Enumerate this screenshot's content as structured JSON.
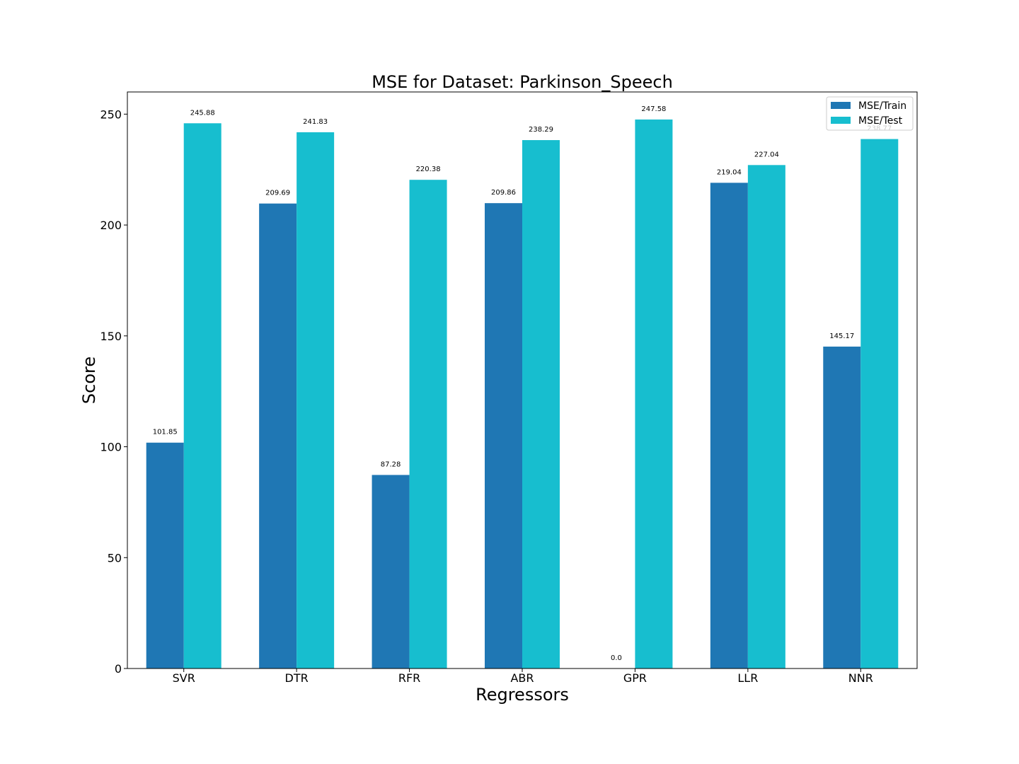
{
  "chart_data": {
    "type": "bar",
    "title": "MSE for Dataset: Parkinson_Speech",
    "xlabel": "Regressors",
    "ylabel": "Score",
    "categories": [
      "SVR",
      "DTR",
      "RFR",
      "ABR",
      "GPR",
      "LLR",
      "NNR"
    ],
    "series": [
      {
        "name": "MSE/Train",
        "color": "#1f77b4",
        "values": [
          101.85,
          209.69,
          87.28,
          209.86,
          0.0,
          219.04,
          145.17
        ],
        "labels": [
          "101.85",
          "209.69",
          "87.28",
          "209.86",
          "0.0",
          "219.04",
          "145.17"
        ]
      },
      {
        "name": "MSE/Test",
        "color": "#17becf",
        "values": [
          245.88,
          241.83,
          220.38,
          238.29,
          247.58,
          227.04,
          238.77
        ],
        "labels": [
          "245.88",
          "241.83",
          "220.38",
          "238.29",
          "247.58",
          "227.04",
          "238.77"
        ]
      }
    ],
    "ylim": [
      0,
      260
    ],
    "yticks": [
      0,
      50,
      100,
      150,
      200,
      250
    ],
    "grid": false,
    "legend_position": "top-right"
  }
}
